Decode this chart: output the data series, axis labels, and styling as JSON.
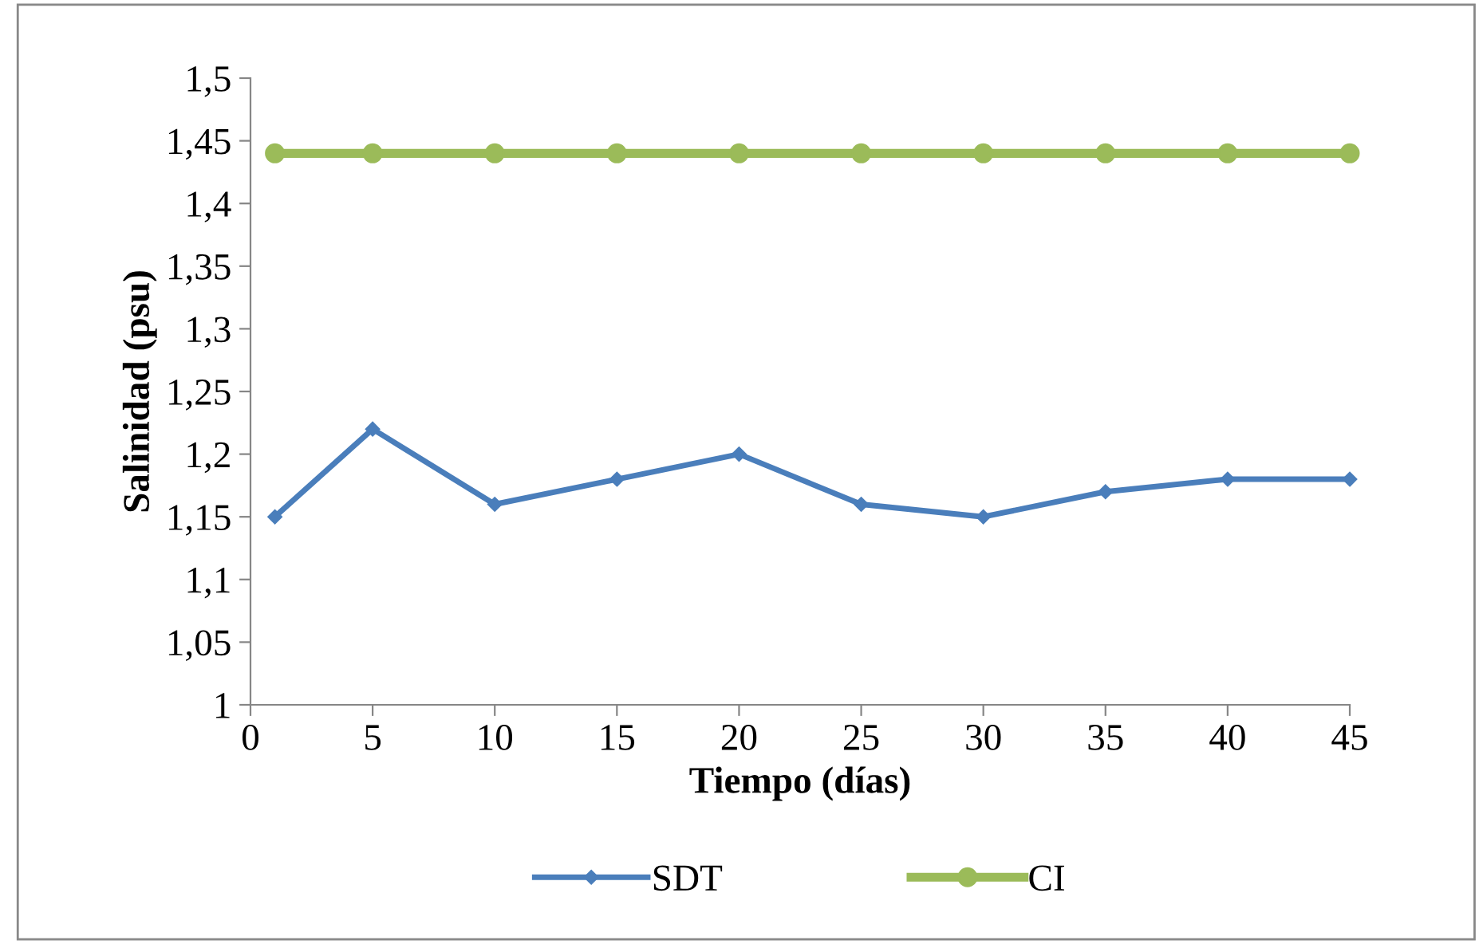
{
  "chart_data": {
    "type": "line",
    "xlabel": "Tiempo (días)",
    "ylabel": "Salinidad (psu)",
    "x": [
      1,
      5,
      10,
      15,
      20,
      25,
      30,
      35,
      40,
      45
    ],
    "series": [
      {
        "name": "SDT",
        "color": "#4a7ebb",
        "marker": "diamond",
        "values": [
          1.15,
          1.22,
          1.16,
          1.18,
          1.2,
          1.16,
          1.15,
          1.17,
          1.18,
          1.18
        ]
      },
      {
        "name": "CI",
        "color": "#9bbb59",
        "marker": "circle",
        "values": [
          1.44,
          1.44,
          1.44,
          1.44,
          1.44,
          1.44,
          1.44,
          1.44,
          1.44,
          1.44
        ]
      }
    ],
    "xlim": [
      0,
      45
    ],
    "xticks": [
      0,
      5,
      10,
      15,
      20,
      25,
      30,
      35,
      40,
      45
    ],
    "ylim": [
      1,
      1.5
    ],
    "yticks": [
      1,
      {
        "value": 1.05,
        "label": "1,05"
      },
      {
        "value": 1.1,
        "label": "1,1"
      },
      {
        "value": 1.15,
        "label": "1,15"
      },
      {
        "value": 1.2,
        "label": "1,2"
      },
      {
        "value": 1.25,
        "label": "1,25"
      },
      {
        "value": 1.3,
        "label": "1,3"
      },
      {
        "value": 1.35,
        "label": "1,35"
      },
      {
        "value": 1.4,
        "label": "1,4"
      },
      {
        "value": 1.45,
        "label": "1,45"
      },
      {
        "value": 1.5,
        "label": "1,5"
      }
    ],
    "grid": false,
    "legend": "bottom"
  }
}
